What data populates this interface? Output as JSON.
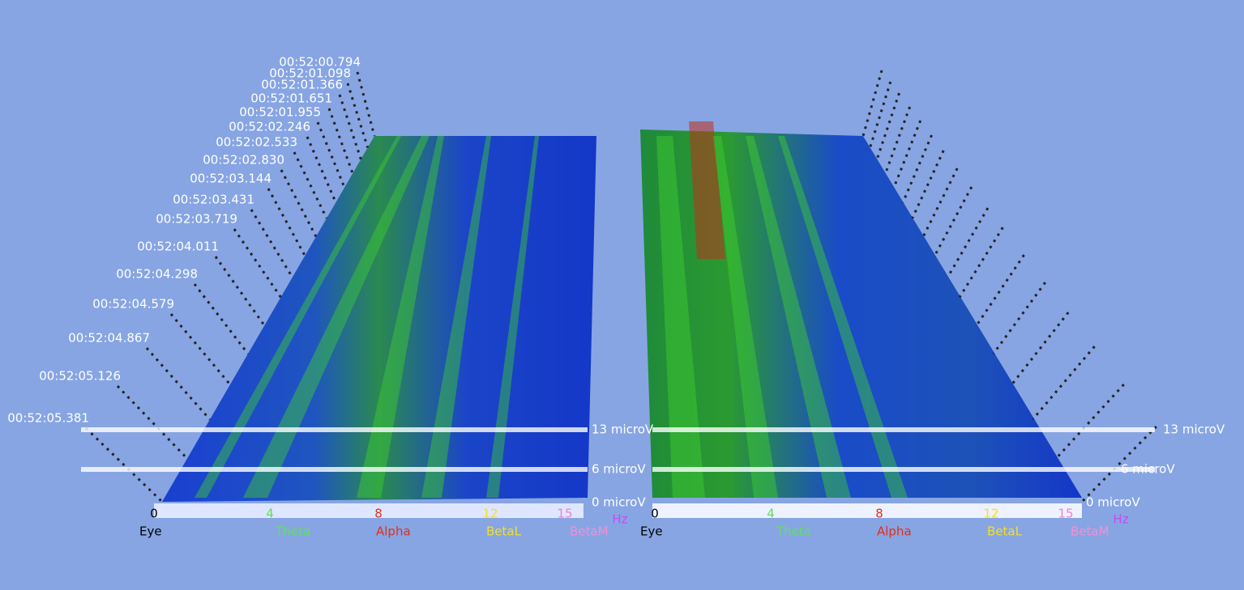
{
  "time_labels": [
    "00:52:00.794",
    "00:52:01.098",
    "00:52:01.366",
    "00:52:01.651",
    "00:52:01.955",
    "00:52:02.246",
    "00:52:02.533",
    "00:52:02.830",
    "00:52:03.144",
    "00:52:03.431",
    "00:52:03.719",
    "00:52:04.011",
    "00:52:04.298",
    "00:52:04.579",
    "00:52:04.867",
    "00:52:05.126",
    "00:52:05.381"
  ],
  "panels": [
    {
      "amplitude_labels": [
        "13 microV",
        "6 microV",
        "0 microV"
      ],
      "frequency_ticks": [
        "0",
        "4",
        "8",
        "12",
        "15"
      ],
      "unit": "Hz",
      "bands": [
        "Eye",
        "Theta",
        "Alpha",
        "BetaL",
        "BetaM"
      ]
    },
    {
      "amplitude_labels": [
        "13 microV",
        "6 microV",
        "0 microV"
      ],
      "frequency_ticks": [
        "0",
        "4",
        "8",
        "12",
        "15"
      ],
      "unit": "Hz",
      "bands": [
        "Eye",
        "Theta",
        "Alpha",
        "BetaL",
        "BetaM"
      ]
    }
  ]
}
